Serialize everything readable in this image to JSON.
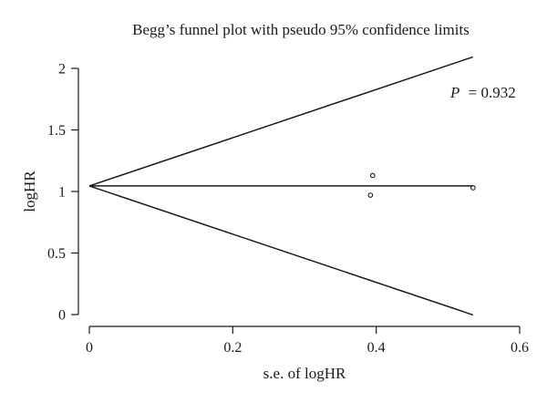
{
  "chart_data": {
    "type": "scatter",
    "title": "Begg’s funnel plot with pseudo 95% confidence limits",
    "xlabel": "s.e. of logHR",
    "ylabel": "logHR",
    "xlim": [
      0,
      0.6
    ],
    "ylim": [
      0,
      2
    ],
    "xticks": [
      0,
      0.2,
      0.4,
      0.6
    ],
    "xtick_labels": [
      "0",
      "0.2",
      "0.4",
      "0.6"
    ],
    "yticks": [
      0,
      0.5,
      1,
      1.5,
      2
    ],
    "ytick_labels": [
      "0",
      "0.5",
      "1",
      "1.5",
      "2"
    ],
    "grid": false,
    "points": [
      {
        "x": 0.392,
        "y": 0.97
      },
      {
        "x": 0.395,
        "y": 1.13
      },
      {
        "x": 0.535,
        "y": 1.03
      }
    ],
    "lines": [
      {
        "role": "pooled estimate",
        "x": [
          0,
          0.535
        ],
        "y": [
          1.045,
          1.045
        ]
      },
      {
        "role": "upper pseudo 95% limit",
        "x": [
          0,
          0.535
        ],
        "y": [
          1.045,
          2.093
        ]
      },
      {
        "role": "lower pseudo 95% limit",
        "x": [
          0,
          0.535
        ],
        "y": [
          1.045,
          -0.003
        ]
      }
    ],
    "annotation": {
      "p_label": "P",
      "p_value": "= 0.932"
    }
  }
}
